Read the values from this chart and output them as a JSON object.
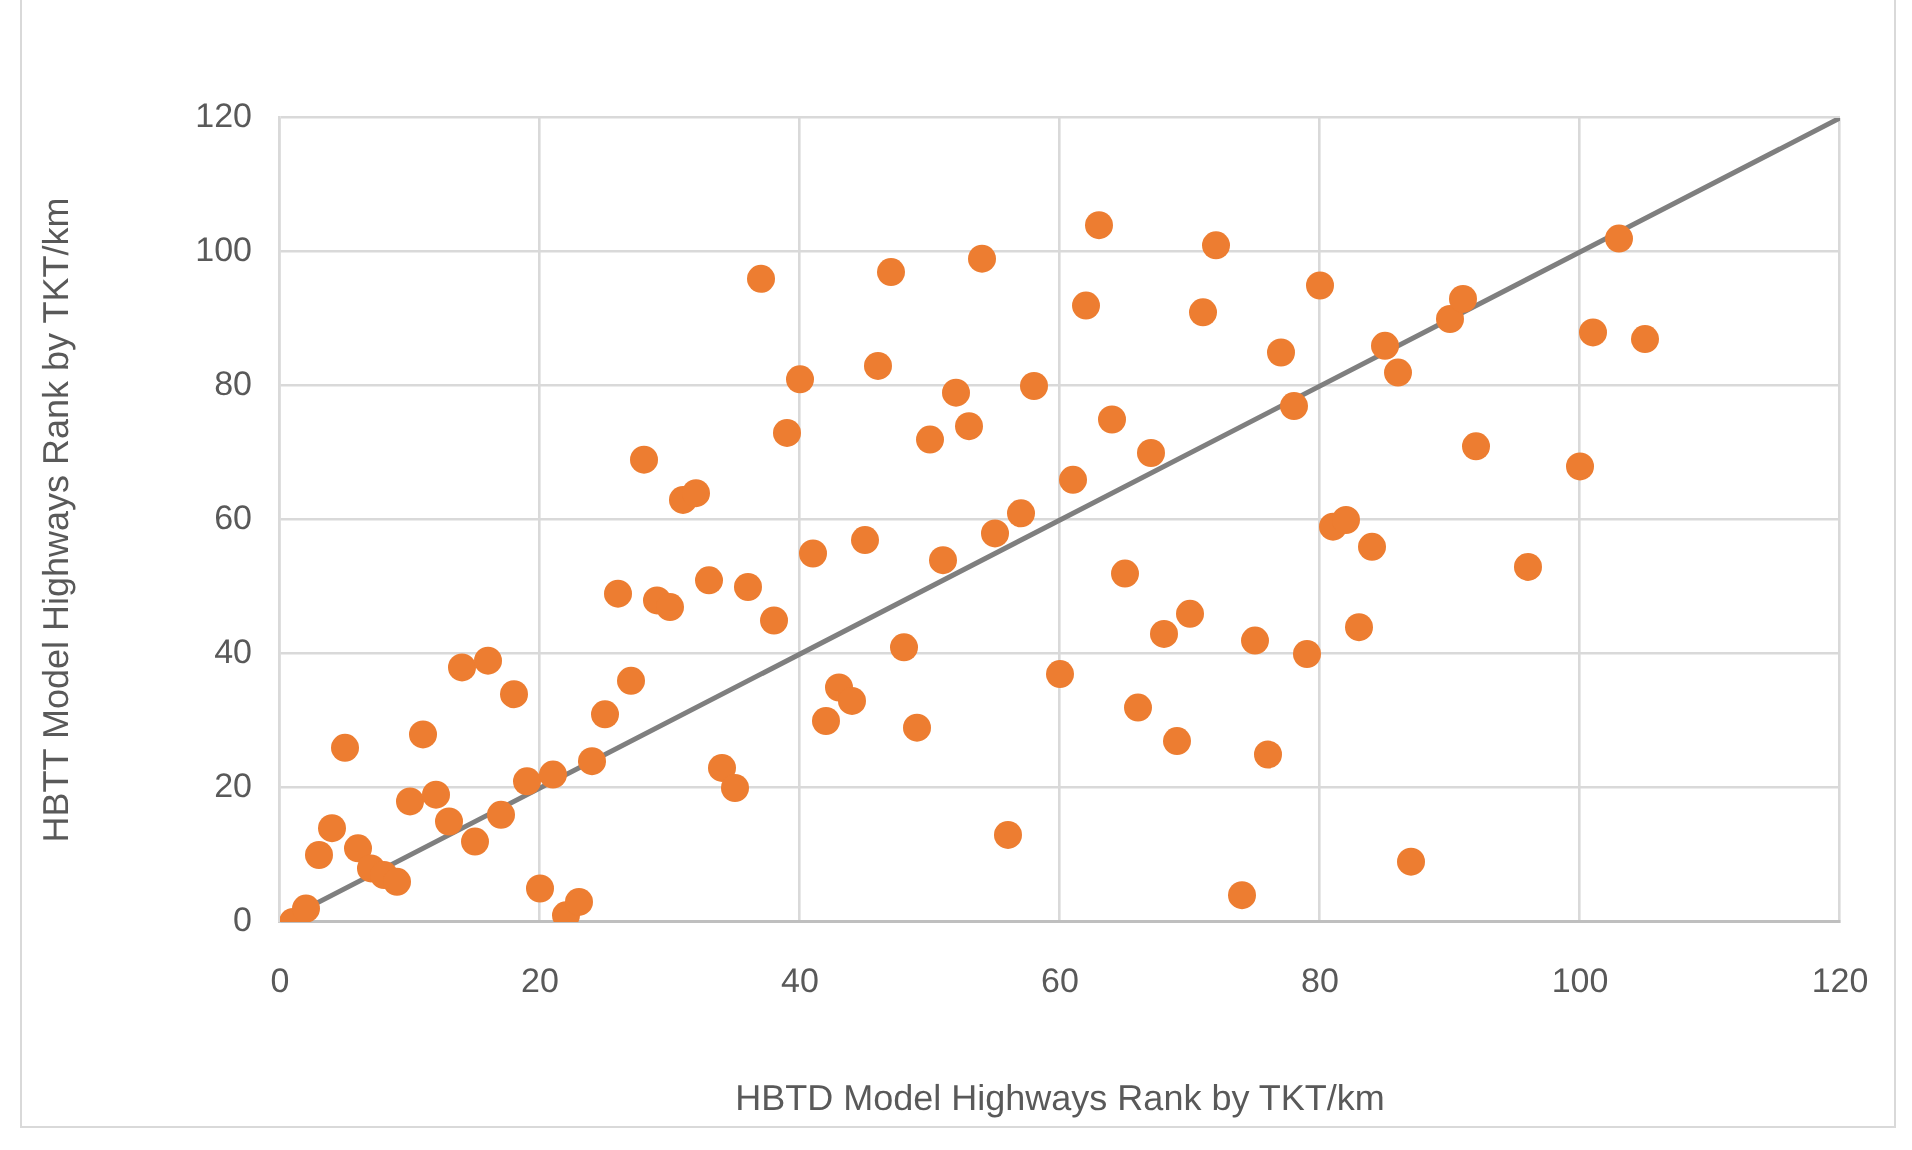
{
  "chart_data": {
    "type": "scatter",
    "xlabel": "HBTD Model Highways Rank by TKT/km",
    "ylabel": "HBTT Model Highways Rank by TKT/km",
    "xlim": [
      0,
      120
    ],
    "ylim": [
      0,
      120
    ],
    "xticks": [
      0,
      20,
      40,
      60,
      80,
      100,
      120
    ],
    "yticks": [
      0,
      20,
      40,
      60,
      80,
      100,
      120
    ],
    "grid": true,
    "marker": "circle",
    "series": [
      {
        "color": "#ed7d31",
        "x": [
          1,
          2,
          3,
          4,
          5,
          6,
          7,
          8,
          9,
          10,
          11,
          12,
          13,
          14,
          15,
          16,
          17,
          18,
          19,
          20,
          21,
          22,
          23,
          24,
          25,
          26,
          27,
          28,
          29,
          30,
          31,
          32,
          33,
          34,
          35,
          36,
          37,
          38,
          39,
          40,
          41,
          42,
          43,
          44,
          45,
          46,
          47,
          48,
          49,
          50,
          51,
          52,
          53,
          54,
          55,
          56,
          57,
          58,
          60,
          61,
          62,
          63,
          64,
          65,
          66,
          67,
          68,
          69,
          70,
          71,
          72,
          74,
          75,
          76,
          77,
          78,
          79,
          80,
          81,
          82,
          83,
          84,
          85,
          86,
          87,
          90,
          91,
          92,
          96,
          100,
          101,
          103,
          105
        ],
        "values": [
          0,
          2,
          10,
          14,
          26,
          11,
          8,
          7,
          6,
          18,
          28,
          19,
          15,
          38,
          12,
          39,
          16,
          34,
          21,
          5,
          22,
          1,
          3,
          24,
          31,
          49,
          36,
          69,
          48,
          47,
          63,
          64,
          51,
          23,
          20,
          50,
          96,
          45,
          73,
          81,
          55,
          30,
          35,
          33,
          57,
          83,
          97,
          41,
          29,
          72,
          54,
          79,
          74,
          99,
          58,
          13,
          61,
          80,
          37,
          66,
          92,
          104,
          75,
          52,
          32,
          70,
          43,
          27,
          46,
          91,
          101,
          4,
          42,
          25,
          85,
          77,
          40,
          95,
          59,
          60,
          44,
          56,
          86,
          82,
          9,
          90,
          93,
          71,
          53,
          68,
          88,
          102,
          87
        ]
      },
      {
        "type": "line",
        "color": "#7f7f7f",
        "x": [
          0,
          120
        ],
        "values": [
          0,
          120
        ],
        "marker": "none"
      }
    ]
  }
}
